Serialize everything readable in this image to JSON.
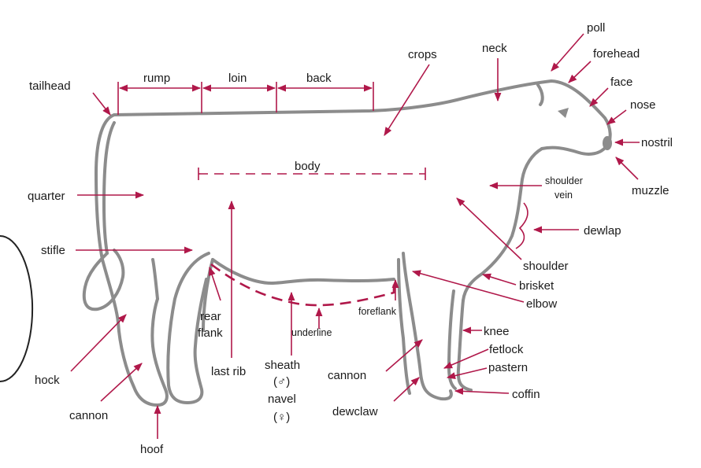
{
  "labels": {
    "poll": "poll",
    "forehead": "forehead",
    "neck": "neck",
    "crops": "crops",
    "face": "face",
    "nose": "nose",
    "nostril": "nostril",
    "muzzle": "muzzle",
    "shoulder_vein_1": "shoulder",
    "shoulder_vein_2": "vein",
    "dewlap": "dewlap",
    "shoulder": "shoulder",
    "brisket": "brisket",
    "elbow": "elbow",
    "knee": "knee",
    "fetlock": "fetlock",
    "pastern": "pastern",
    "coffin": "coffin",
    "tailhead": "tailhead",
    "rump": "rump",
    "loin": "loin",
    "back": "back",
    "body": "body",
    "quarter": "quarter",
    "stifle": "stifle",
    "rear_flank_1": "rear",
    "rear_flank_2": "flank",
    "last_rib": "last rib",
    "underline": "underline",
    "foreflank": "foreflank",
    "sheath": "sheath",
    "male_symbol": "(♂)",
    "navel": "navel",
    "female_symbol": "(♀)",
    "cannon_front": "cannon",
    "dewclaw": "dewclaw",
    "hock": "hock",
    "cannon_rear": "cannon",
    "hoof": "hoof"
  },
  "colors": {
    "pointer": "#b0184a",
    "outline": "#8c8c8c",
    "text": "#1a1a1a"
  }
}
